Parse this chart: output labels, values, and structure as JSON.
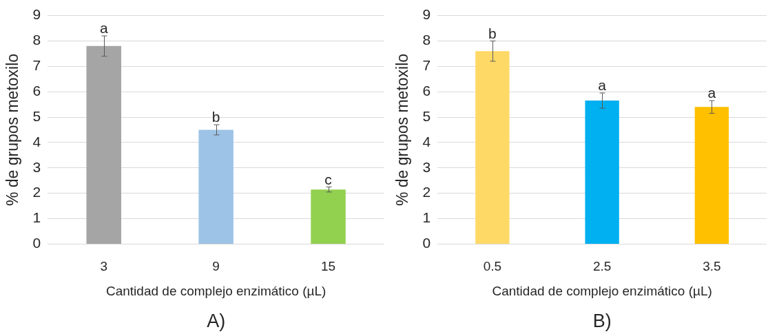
{
  "chart_data": [
    {
      "type": "bar",
      "categories": [
        "3",
        "9",
        "15"
      ],
      "values": [
        7.8,
        4.5,
        2.15
      ],
      "errors": [
        0.4,
        0.2,
        0.1
      ],
      "colors": [
        "#a5a5a5",
        "#9dc3e6",
        "#92d050"
      ],
      "xlabel": "Cantidad de complejo enzimático (µL)",
      "ylabel": "% de grupos metoxilo",
      "ylim": [
        0,
        9
      ],
      "yticks": [
        0,
        1,
        2,
        3,
        4,
        5,
        6,
        7,
        8,
        9
      ],
      "grid": "y",
      "annotations": [
        {
          "text": "a",
          "x": "3",
          "y": 8.2
        },
        {
          "text": "b",
          "x": "9",
          "y": 4.7
        },
        {
          "text": "c",
          "x": "15",
          "y": 2.25
        },
        "A)"
      ]
    },
    {
      "type": "bar",
      "categories": [
        "0.5",
        "2.5",
        "3.5"
      ],
      "values": [
        7.6,
        5.65,
        5.4
      ],
      "errors": [
        0.4,
        0.3,
        0.25
      ],
      "colors": [
        "#ffd966",
        "#00b0f0",
        "#ffc000"
      ],
      "xlabel": "Cantidad de complejo enzimático (µL)",
      "ylabel": "% de grupos metoxilo",
      "ylim": [
        0,
        9
      ],
      "yticks": [
        0,
        1,
        2,
        3,
        4,
        5,
        6,
        7,
        8,
        9
      ],
      "grid": "y",
      "annotations": [
        {
          "text": "b",
          "x": "0.5",
          "y": 8.0
        },
        {
          "text": "a",
          "x": "2.5",
          "y": 5.95
        },
        {
          "text": "a",
          "x": "3.5",
          "y": 5.65
        },
        "B)"
      ]
    }
  ]
}
